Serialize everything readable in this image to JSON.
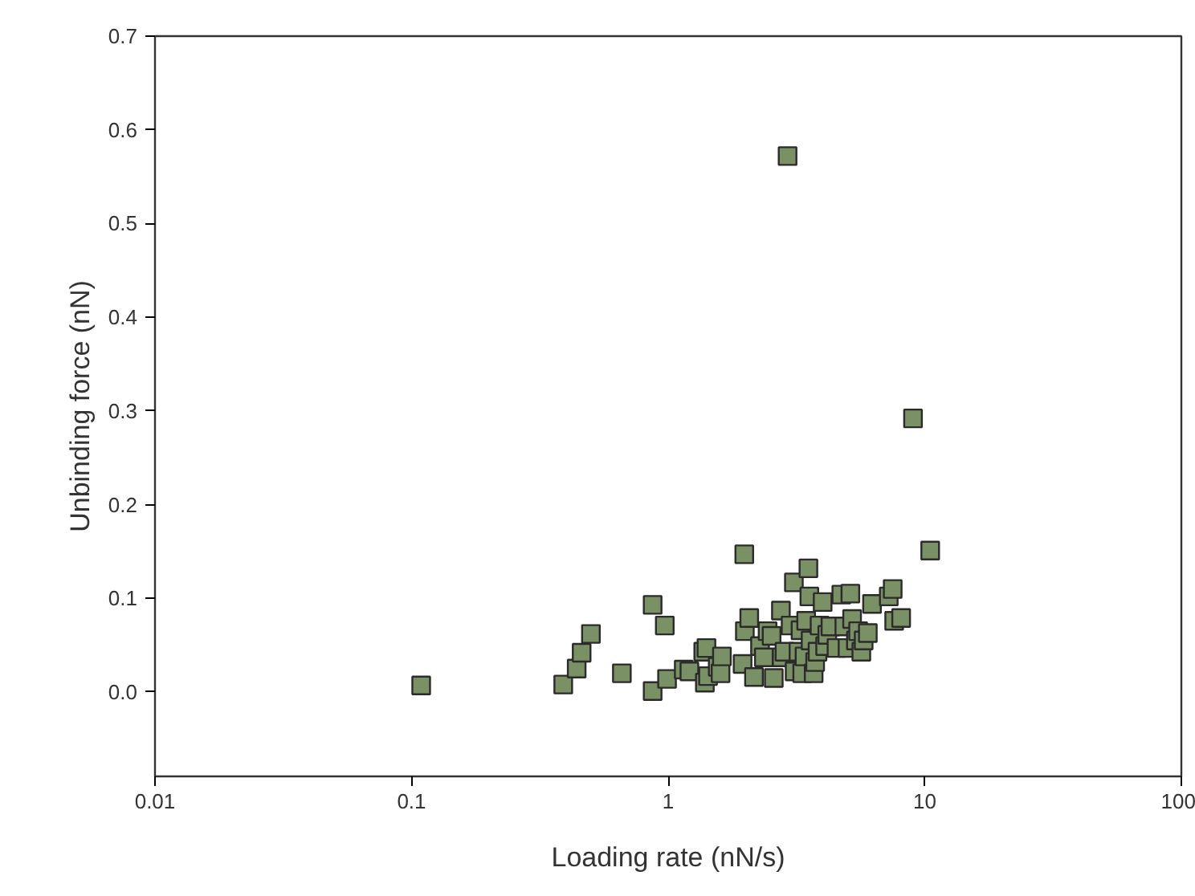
{
  "chart_data": {
    "type": "scatter",
    "xlabel": "Loading rate (nN/s)",
    "ylabel": "Unbinding force (nN)",
    "log": "x",
    "xlim": [
      0.01,
      100
    ],
    "xticks": [
      {
        "value": 0.01,
        "label": "0.01"
      },
      {
        "value": 0.1,
        "label": "0.1"
      },
      1,
      10,
      100
    ],
    "ylim": [
      -0.09,
      0.7
    ],
    "yticks": [
      {
        "value": 0,
        "label": "0.0"
      },
      0.1,
      0.2,
      0.3,
      0.4,
      0.5,
      0.6,
      0.7
    ],
    "grid": false,
    "marker": "square",
    "series": [
      {
        "color": "#7a9065",
        "x": [
          0.109,
          0.39,
          0.44,
          0.46,
          0.5,
          0.66,
          0.87,
          0.97,
          0.87,
          0.99,
          1.15,
          1.21,
          1.37,
          1.41,
          1.39,
          1.43,
          1.56,
          1.6,
          1.62,
          1.95,
          1.98,
          1.99,
          2.07,
          2.16,
          2.28,
          2.36,
          2.44,
          2.53,
          2.58,
          2.75,
          2.77,
          2.84,
          2.92,
          3.0,
          3.09,
          3.11,
          3.22,
          3.28,
          3.33,
          3.4,
          3.45,
          3.52,
          3.55,
          3.59,
          3.69,
          3.74,
          3.82,
          3.89,
          4.0,
          4.09,
          4.17,
          4.29,
          4.53,
          4.73,
          4.86,
          5.0,
          5.13,
          5.21,
          5.39,
          5.5,
          5.66,
          5.78,
          6.0,
          6.23,
          7.24,
          7.5,
          7.6,
          8.09,
          9.0,
          10.5
        ],
        "values": [
          0.007,
          0.008,
          0.025,
          0.042,
          0.062,
          0.02,
          0.093,
          0.071,
          0.001,
          0.014,
          0.024,
          0.022,
          0.043,
          0.047,
          0.01,
          0.017,
          0.027,
          0.02,
          0.038,
          0.03,
          0.147,
          0.065,
          0.079,
          0.016,
          0.049,
          0.037,
          0.065,
          0.06,
          0.015,
          0.087,
          0.037,
          0.043,
          0.572,
          0.071,
          0.117,
          0.022,
          0.043,
          0.066,
          0.02,
          0.038,
          0.076,
          0.132,
          0.102,
          0.055,
          0.02,
          0.032,
          0.043,
          0.071,
          0.096,
          0.049,
          0.061,
          0.07,
          0.047,
          0.104,
          0.07,
          0.047,
          0.105,
          0.078,
          0.055,
          0.065,
          0.043,
          0.055,
          0.063,
          0.094,
          0.102,
          0.11,
          0.076,
          0.079,
          0.292,
          0.151
        ]
      }
    ]
  }
}
